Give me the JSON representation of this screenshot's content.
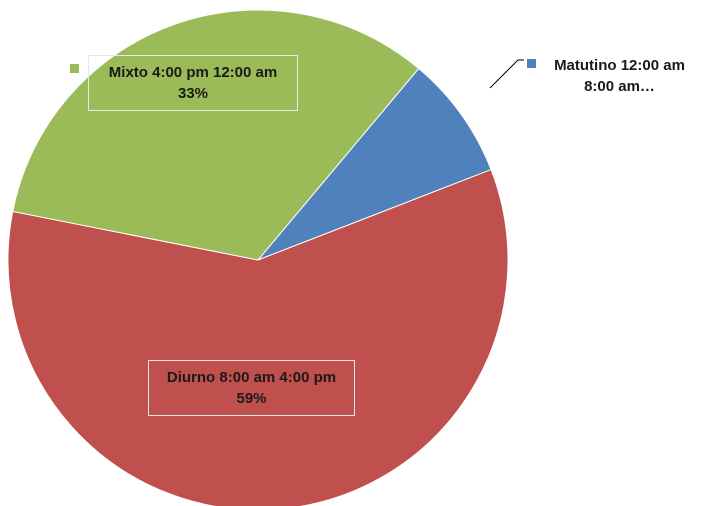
{
  "chart_data": {
    "type": "pie",
    "categories": [
      "Matutino 12:00 am 8:00 am…",
      "Diurno 8:00 am 4:00 pm",
      "Mixto 4:00 pm 12:00 am"
    ],
    "values": [
      8,
      59,
      33
    ],
    "value_labels": [
      null,
      "59%",
      "33%"
    ],
    "colors": [
      "#4f81bd",
      "#c0504d",
      "#9bbb59"
    ]
  }
}
